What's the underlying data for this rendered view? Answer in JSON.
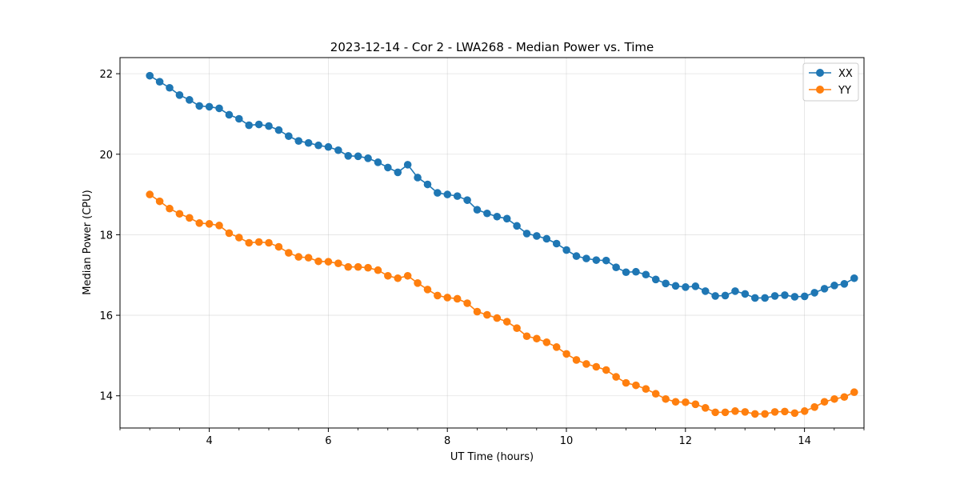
{
  "chart_data": {
    "type": "line",
    "title": "2023-12-14 - Cor 2 - LWA268 - Median Power vs. Time",
    "xlabel": "UT Time (hours)",
    "ylabel": "Median Power (CPU)",
    "xlim": [
      2.5,
      15.0
    ],
    "ylim": [
      13.2,
      22.4
    ],
    "xticks": [
      4,
      6,
      8,
      10,
      12,
      14
    ],
    "yticks": [
      14,
      16,
      18,
      20,
      22
    ],
    "grid": true,
    "legend_position": "top-right",
    "x_start": 3.0,
    "x_step": 0.1667,
    "series": [
      {
        "name": "XX",
        "color": "#1f77b4",
        "values": [
          21.95,
          21.8,
          21.65,
          21.47,
          21.35,
          21.2,
          21.18,
          21.14,
          20.98,
          20.88,
          20.72,
          20.74,
          20.7,
          20.6,
          20.45,
          20.33,
          20.28,
          20.22,
          20.18,
          20.1,
          19.96,
          19.95,
          19.9,
          19.8,
          19.67,
          19.55,
          19.74,
          19.42,
          19.25,
          19.04,
          19.0,
          18.96,
          18.86,
          18.62,
          18.53,
          18.45,
          18.4,
          18.22,
          18.03,
          17.97,
          17.9,
          17.78,
          17.62,
          17.47,
          17.41,
          17.37,
          17.36,
          17.19,
          17.07,
          17.08,
          17.01,
          16.89,
          16.79,
          16.73,
          16.7,
          16.72,
          16.6,
          16.48,
          16.49,
          16.6,
          16.53,
          16.43,
          16.43,
          16.48,
          16.5,
          16.46,
          16.47,
          16.56,
          16.66,
          16.74,
          16.78,
          16.92
        ]
      },
      {
        "name": "YY",
        "color": "#ff7f0e",
        "values": [
          19.0,
          18.83,
          18.65,
          18.52,
          18.42,
          18.29,
          18.27,
          18.23,
          18.04,
          17.93,
          17.8,
          17.82,
          17.8,
          17.7,
          17.55,
          17.45,
          17.43,
          17.34,
          17.33,
          17.29,
          17.2,
          17.2,
          17.18,
          17.12,
          16.98,
          16.92,
          16.98,
          16.8,
          16.64,
          16.49,
          16.44,
          16.41,
          16.3,
          16.09,
          16.01,
          15.93,
          15.84,
          15.68,
          15.48,
          15.42,
          15.33,
          15.21,
          15.04,
          14.89,
          14.79,
          14.72,
          14.64,
          14.47,
          14.32,
          14.26,
          14.17,
          14.05,
          13.92,
          13.85,
          13.84,
          13.79,
          13.7,
          13.59,
          13.59,
          13.62,
          13.6,
          13.55,
          13.55,
          13.6,
          13.61,
          13.57,
          13.62,
          13.72,
          13.85,
          13.92,
          13.97,
          14.09
        ]
      }
    ]
  }
}
